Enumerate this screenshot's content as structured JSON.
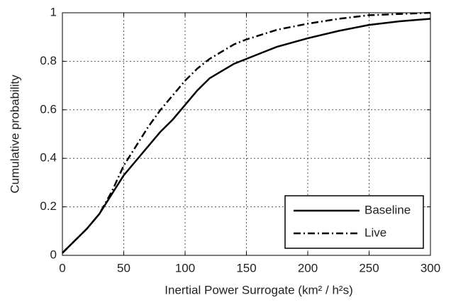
{
  "chart_data": {
    "type": "line",
    "xlabel": "Inertial Power Surrogate (km² / h²s)",
    "ylabel": "Cumulative probability",
    "x": [
      0,
      10,
      20,
      30,
      40,
      50,
      60,
      70,
      80,
      90,
      100,
      110,
      120,
      130,
      140,
      150,
      175,
      200,
      225,
      250,
      275,
      300
    ],
    "series": [
      {
        "name": "Baseline",
        "color": "#000000",
        "dash": "solid",
        "values": [
          0.01,
          0.06,
          0.11,
          0.17,
          0.25,
          0.33,
          0.39,
          0.45,
          0.51,
          0.56,
          0.62,
          0.68,
          0.73,
          0.76,
          0.79,
          0.81,
          0.86,
          0.895,
          0.925,
          0.95,
          0.965,
          0.975
        ]
      },
      {
        "name": "Live",
        "color": "#000000",
        "dash": "dashdot",
        "values": [
          0.01,
          0.06,
          0.11,
          0.17,
          0.26,
          0.37,
          0.45,
          0.53,
          0.6,
          0.66,
          0.72,
          0.77,
          0.81,
          0.84,
          0.87,
          0.89,
          0.93,
          0.955,
          0.975,
          0.99,
          0.995,
          1.0
        ]
      }
    ],
    "xlim": [
      0,
      300
    ],
    "xticks": [
      0,
      50,
      100,
      150,
      200,
      250,
      300
    ],
    "ylim": [
      0,
      1
    ],
    "yticks": [
      0,
      0.2,
      0.4,
      0.6,
      0.8,
      1
    ],
    "grid": true,
    "legend": "lower right"
  }
}
